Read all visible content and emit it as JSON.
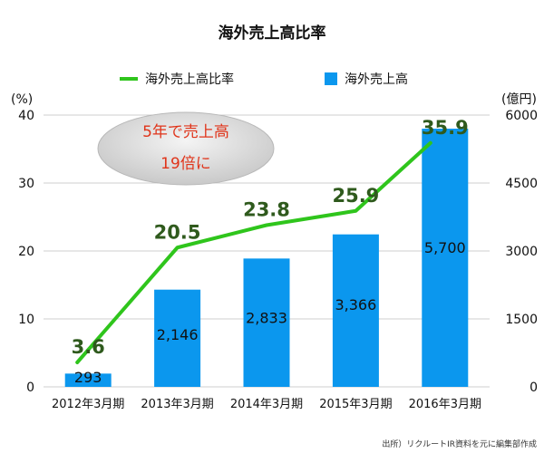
{
  "chart_data": {
    "type": "bar",
    "title": "海外売上高比率",
    "categories": [
      "2012年3月期",
      "2013年3月期",
      "2014年3月期",
      "2015年3月期",
      "2016年3月期"
    ],
    "series": [
      {
        "name": "海外売上高",
        "type": "bar",
        "axis": "right",
        "values": [
          293,
          2146,
          2833,
          3366,
          5700
        ],
        "value_labels": [
          "293",
          "2,146",
          "2,833",
          "3,366",
          "5,700"
        ]
      },
      {
        "name": "海外売上高比率",
        "type": "line",
        "axis": "left",
        "values": [
          3.6,
          20.5,
          23.8,
          25.9,
          35.9
        ],
        "value_labels": [
          "3.6",
          "20.5",
          "23.8",
          "25.9",
          "35.9"
        ]
      }
    ],
    "left_axis": {
      "unit": "(%)",
      "ylim": [
        0,
        40
      ],
      "ticks": [
        "0",
        "10",
        "20",
        "30",
        "40"
      ]
    },
    "right_axis": {
      "unit": "(億円)",
      "ylim": [
        0,
        6000
      ],
      "ticks": [
        "0",
        "1500",
        "3000",
        "4500",
        "6000"
      ]
    },
    "grid": true,
    "legend_position": "top",
    "annotation": [
      "5年で売上高",
      "19倍に"
    ],
    "source": "出所）リクルートIR資料を元に編集部作成"
  },
  "colors": {
    "bar": "#0b97ee",
    "line": "#2fc51c",
    "line_label": "#2f5a1d",
    "annotation_text": "#e0341a",
    "grid": "#cfcfcf"
  }
}
